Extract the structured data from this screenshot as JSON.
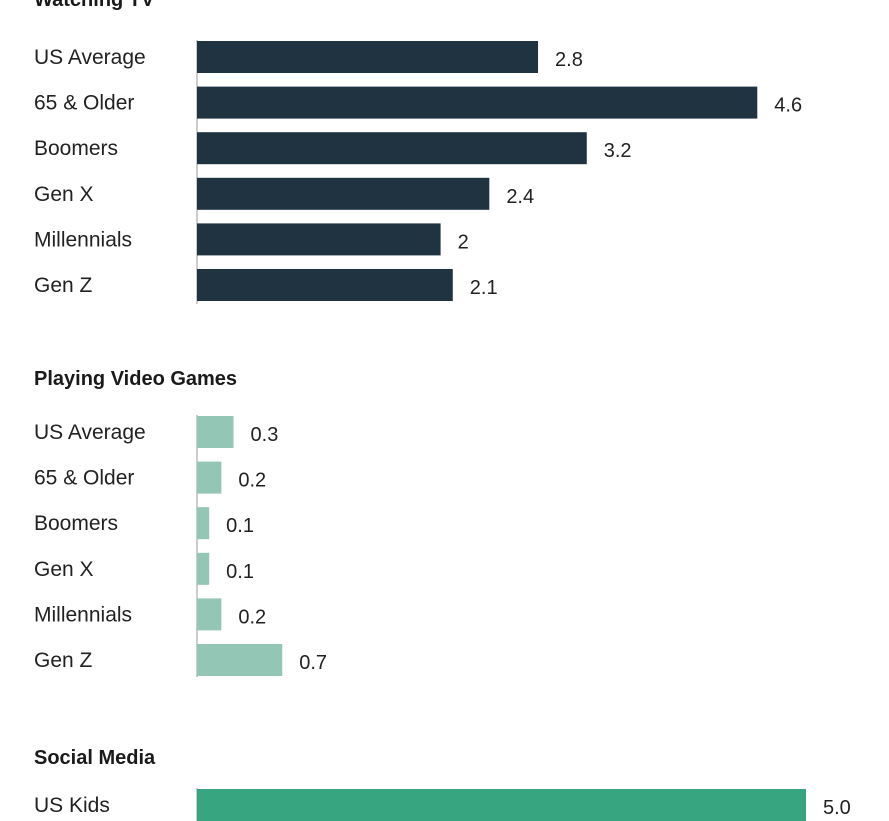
{
  "chart_data": [
    {
      "type": "bar",
      "orientation": "horizontal",
      "title": "Watching TV",
      "categories": [
        "US Average",
        "65 & Older",
        "Boomers",
        "Gen X",
        "Millennials",
        "Gen Z"
      ],
      "values": [
        2.8,
        4.6,
        3.2,
        2.4,
        2,
        2.1
      ],
      "value_labels": [
        "2.8",
        "4.6",
        "3.2",
        "2.4",
        "2",
        "2.1"
      ],
      "color": "#1f3340",
      "xlim": [
        0,
        5.0
      ]
    },
    {
      "type": "bar",
      "orientation": "horizontal",
      "title": "Playing Video Games",
      "categories": [
        "US Average",
        "65 & Older",
        "Boomers",
        "Gen X",
        "Millennials",
        "Gen Z"
      ],
      "values": [
        0.3,
        0.2,
        0.1,
        0.1,
        0.2,
        0.7
      ],
      "value_labels": [
        "0.3",
        "0.2",
        "0.1",
        "0.1",
        "0.2",
        "0.7"
      ],
      "color": "#93c6b4",
      "xlim": [
        0,
        5.0
      ]
    },
    {
      "type": "bar",
      "orientation": "horizontal",
      "title": "Social Media",
      "categories": [
        "US Kids"
      ],
      "values": [
        5.0
      ],
      "value_labels": [
        "5.0"
      ],
      "color": "#36a580",
      "xlim": [
        0,
        5.0
      ]
    }
  ]
}
